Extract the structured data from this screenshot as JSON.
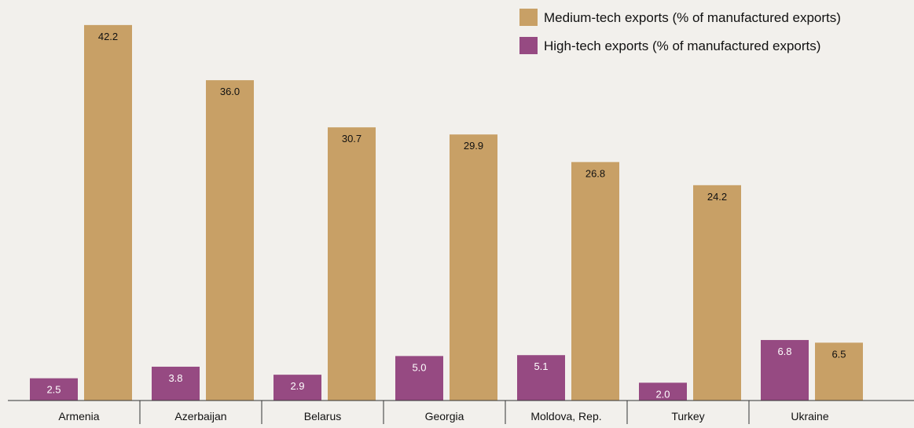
{
  "chart_data": {
    "type": "bar",
    "title": "",
    "xlabel": "",
    "ylabel": "",
    "categories": [
      "Armenia",
      "Azerbaijan",
      "Belarus",
      "Georgia",
      "Moldova, Rep.",
      "Turkey",
      "Ukraine"
    ],
    "series": [
      {
        "name": "High-tech exports (% of manufactured exports)",
        "color": "#964a82",
        "values": [
          2.5,
          3.8,
          2.9,
          5.0,
          5.1,
          2.0,
          6.8
        ],
        "labels": [
          "2.5",
          "3.8",
          "2.9",
          "5.0",
          "5.1",
          "2.0",
          "6.8"
        ]
      },
      {
        "name": "Medium-tech exports (% of manufactured exports)",
        "color": "#c8a066",
        "values": [
          42.2,
          36.0,
          30.7,
          29.9,
          26.8,
          24.2,
          6.5
        ],
        "labels": [
          "42.2",
          "36.0",
          "30.7",
          "29.9",
          "26.8",
          "24.2",
          "6.5"
        ]
      }
    ],
    "legend_order": [
      1,
      0
    ],
    "legend_position": "top-right",
    "ylim": [
      0,
      45
    ],
    "grid": false,
    "data_labels": true
  }
}
